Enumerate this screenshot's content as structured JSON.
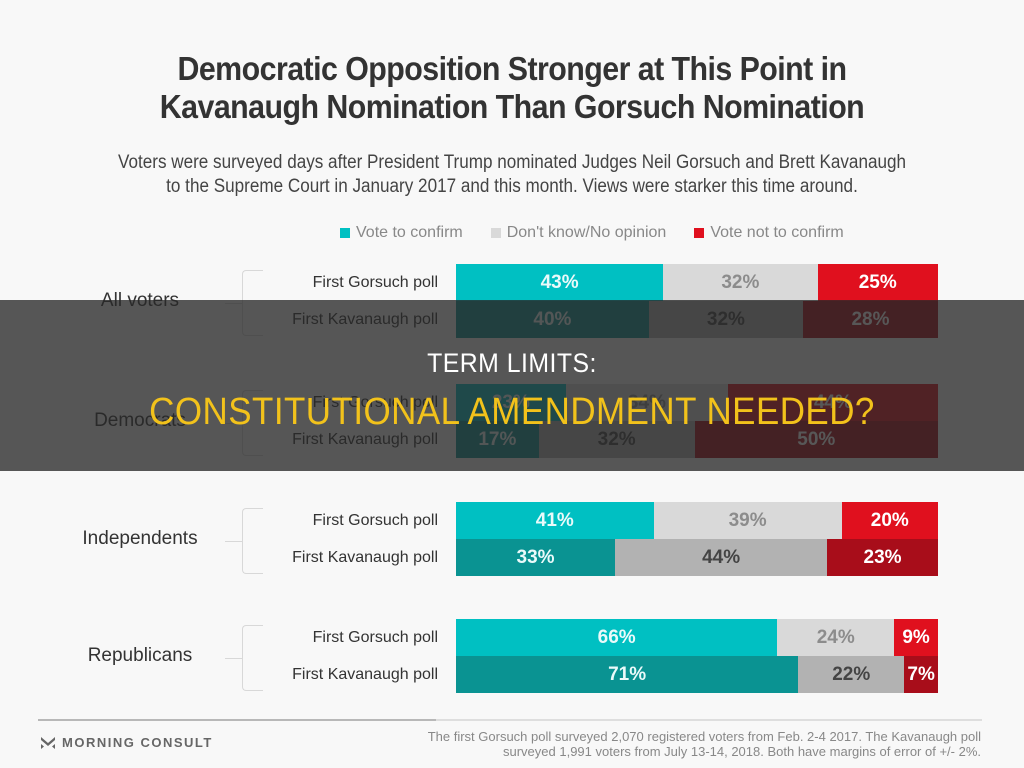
{
  "header": {
    "title_line1": "Democratic Opposition Stronger at This Point in",
    "title_line2": "Kavanaugh Nomination Than Gorsuch Nomination",
    "subtitle_line1": "Voters were surveyed days after President Trump nominated Judges Neil Gorsuch and Brett Kavanaugh",
    "subtitle_line2": "to the Supreme Court in January 2017 and this month. Views were starker this time around."
  },
  "legend": [
    {
      "label": "Vote to confirm",
      "color": "#00c0c2"
    },
    {
      "label": "Don't know/No opinion",
      "color": "#d9d9d9"
    },
    {
      "label": "Vote not to confirm",
      "color": "#e0101e"
    }
  ],
  "groups": [
    {
      "label": "All voters",
      "rows": [
        {
          "label": "First Gorsuch poll",
          "values": [
            43,
            32,
            25
          ],
          "texts": [
            "43%",
            "32%",
            "25%"
          ]
        },
        {
          "label": "First Kavanaugh poll",
          "values": [
            40,
            32,
            28
          ],
          "texts": [
            "40%",
            "32%",
            "28%"
          ]
        }
      ]
    },
    {
      "label": "Democrats",
      "rows": [
        {
          "label": "First Gorsuch poll",
          "values": [
            23,
            34,
            44
          ],
          "texts": [
            "23%",
            "34%",
            "44%"
          ]
        },
        {
          "label": "First Kavanaugh poll",
          "values": [
            17,
            32,
            50
          ],
          "texts": [
            "17%",
            "32%",
            "50%"
          ]
        }
      ]
    },
    {
      "label": "Independents",
      "rows": [
        {
          "label": "First Gorsuch poll",
          "values": [
            41,
            39,
            20
          ],
          "texts": [
            "41%",
            "39%",
            "20%"
          ]
        },
        {
          "label": "First Kavanaugh poll",
          "values": [
            33,
            44,
            23
          ],
          "texts": [
            "33%",
            "44%",
            "23%"
          ]
        }
      ]
    },
    {
      "label": "Republicans",
      "rows": [
        {
          "label": "First Gorsuch poll",
          "values": [
            66,
            24,
            9
          ],
          "texts": [
            "66%",
            "24%",
            "9%"
          ]
        },
        {
          "label": "First Kavanaugh poll",
          "values": [
            71,
            22,
            7
          ],
          "texts": [
            "71%",
            "22%",
            "7%"
          ]
        }
      ]
    }
  ],
  "footer": {
    "brand": "MORNING CONSULT",
    "brand_icon": "morning-consult-chevron-logo",
    "note_line1": "The first Gorsuch poll surveyed 2,070 registered voters from Feb. 2-4 2017. The Kavanaugh poll",
    "note_line2": "surveyed 1,991 voters from July 13-14, 2018. Both have margins of error of +/- 2%."
  },
  "overlay": {
    "line1": "TERM LIMITS:",
    "line2": "CONSTITUTIONAL AMENDMENT NEEDED?"
  },
  "chart_data": {
    "type": "bar",
    "orientation": "horizontal",
    "stacked": true,
    "title": "Democratic Opposition Stronger at This Point in Kavanaugh Nomination Than Gorsuch Nomination",
    "subtitle": "Voters were surveyed days after President Trump nominated Judges Neil Gorsuch and Brett Kavanaugh to the Supreme Court in January 2017 and this month. Views were starker this time around.",
    "categories": [
      "All voters - First Gorsuch poll",
      "All voters - First Kavanaugh poll",
      "Democrats - First Gorsuch poll",
      "Democrats - First Kavanaugh poll",
      "Independents - First Gorsuch poll",
      "Independents - First Kavanaugh poll",
      "Republicans - First Gorsuch poll",
      "Republicans - First Kavanaugh poll"
    ],
    "series": [
      {
        "name": "Vote to confirm",
        "color": "#00c0c2",
        "values": [
          43,
          40,
          23,
          17,
          41,
          33,
          66,
          71
        ]
      },
      {
        "name": "Don't know/No opinion",
        "color": "#d9d9d9",
        "values": [
          32,
          32,
          34,
          32,
          39,
          44,
          24,
          22
        ]
      },
      {
        "name": "Vote not to confirm",
        "color": "#e0101e",
        "values": [
          25,
          28,
          44,
          50,
          20,
          23,
          9,
          7
        ]
      }
    ],
    "xlabel": "",
    "ylabel": "",
    "xlim": [
      0,
      100
    ],
    "units": "%",
    "legend_position": "top",
    "grid": false,
    "source_note": "The first Gorsuch poll surveyed 2,070 registered voters from Feb. 2-4 2017. The Kavanaugh poll surveyed 1,991 voters from July 13-14, 2018. Both have margins of error of +/- 2%."
  }
}
